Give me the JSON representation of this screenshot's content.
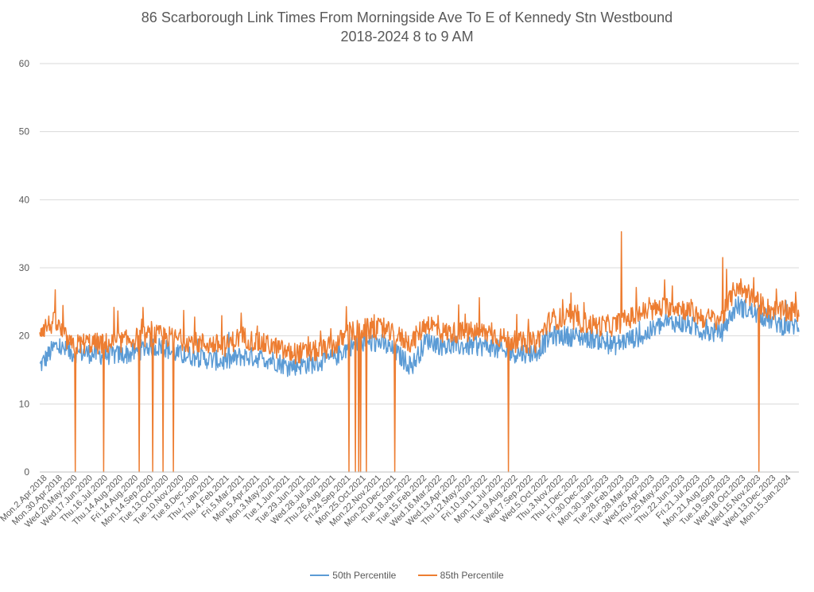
{
  "chart_data": {
    "type": "line",
    "title_line1": "86 Scarborough Link Times From Morningside Ave To E of Kennedy Stn Westbound",
    "title_line2": "2018-2024 8 to 9 AM",
    "xlabel": "",
    "ylabel": "",
    "ylim": [
      0,
      60
    ],
    "y_ticks": [
      0,
      10,
      20,
      30,
      40,
      50,
      60
    ],
    "grid": "horizontal",
    "legend_position": "bottom",
    "x_tick_labels": [
      "Mon.2.Apr.2018",
      "Mon.30.Apr.2018",
      "Wed.20.May.2020",
      "Wed.17.Jun.2020",
      "Thu.16.Jul.2020",
      "Thu.14.Aug.2020",
      "Fri.14.Aug.2020",
      "Mon.14.Sep.2020",
      "Tue.13.Oct.2020",
      "Tue.10.Nov.2020",
      "Tue.8.Dec.2020",
      "Thu.7.Jan.2021",
      "Thu.4.Feb.2021",
      "Fri.5.Mar.2021",
      "Mon.5.Apr.2021",
      "Mon.3.May.2021",
      "Tue.1.Jun.2021",
      "Tue.29.Jun.2021",
      "Wed.28.Jul.2021",
      "Thu.26.Aug.2021",
      "Fri.24.Sep.2021",
      "Mon.25.Oct.2021",
      "Mon.22.Nov.2021",
      "Mon.20.Dec.2021",
      "Tue.18.Jan.2022",
      "Tue.15.Feb.2022",
      "Wed.16.Mar.2022",
      "Wed.13.Apr.2022",
      "Thu.12.May.2022",
      "Fri.10.Jun.2022",
      "Mon.11.Jul.2022",
      "Tue.9.Aug.2022",
      "Wed.7.Sep.2022",
      "Wed.5.Oct.2022",
      "Thu.3.Nov.2022",
      "Thu.1.Dec.2022",
      "Fri.30.Dec.2022",
      "Mon.30.Jan.2023",
      "Tue.28.Feb.2023",
      "Tue.28.Mar.2023",
      "Wed.26.Apr.2023",
      "Thu.25.May.2023",
      "Thu.22.Jun.2023",
      "Fri.21.Jul.2023",
      "Mon.21.Aug.2023",
      "Tue.19.Sep.2023",
      "Wed.18.Oct.2023",
      "Wed.15.Nov.2023",
      "Wed.13.Dec.2023",
      "Mon.15.Jan.2024"
    ],
    "series": [
      {
        "name": "50th Percentile",
        "color": "#5b9bd5",
        "base_levels": [
          15.5,
          18.5,
          17.5,
          17.5,
          17.2,
          17.2,
          17.4,
          18.5,
          18.3,
          17.2,
          17.0,
          16.5,
          16.2,
          17.0,
          16.8,
          16.5,
          15.5,
          15.8,
          16.0,
          16.8,
          18.5,
          19.0,
          19.0,
          17.5,
          15.5,
          19.5,
          18.5,
          18.5,
          18.5,
          18.5,
          17.5,
          17.5,
          17.5,
          20.0,
          20.0,
          19.8,
          19.5,
          18.5,
          19.5,
          20.0,
          21.5,
          22.0,
          21.5,
          20.5,
          20.5,
          24.5,
          23.5,
          22.5,
          21.5,
          21.5
        ]
      },
      {
        "name": "85th Percentile",
        "color": "#ed7d31",
        "base_levels": [
          21.0,
          22.0,
          18.5,
          19.0,
          18.8,
          19.0,
          19.5,
          20.0,
          20.0,
          19.5,
          19.0,
          18.8,
          18.5,
          20.0,
          19.0,
          18.5,
          17.5,
          17.5,
          17.8,
          18.5,
          20.5,
          21.0,
          21.0,
          20.0,
          19.0,
          22.0,
          20.5,
          20.5,
          20.5,
          20.5,
          19.5,
          19.0,
          19.0,
          22.5,
          22.5,
          22.0,
          21.5,
          21.5,
          22.5,
          23.5,
          24.0,
          24.5,
          23.5,
          22.5,
          22.5,
          27.5,
          25.5,
          24.0,
          23.5,
          23.5
        ]
      }
    ]
  },
  "legend": {
    "items": [
      {
        "label": "50th Percentile",
        "color": "#5b9bd5"
      },
      {
        "label": "85th Percentile",
        "color": "#ed7d31"
      }
    ]
  }
}
